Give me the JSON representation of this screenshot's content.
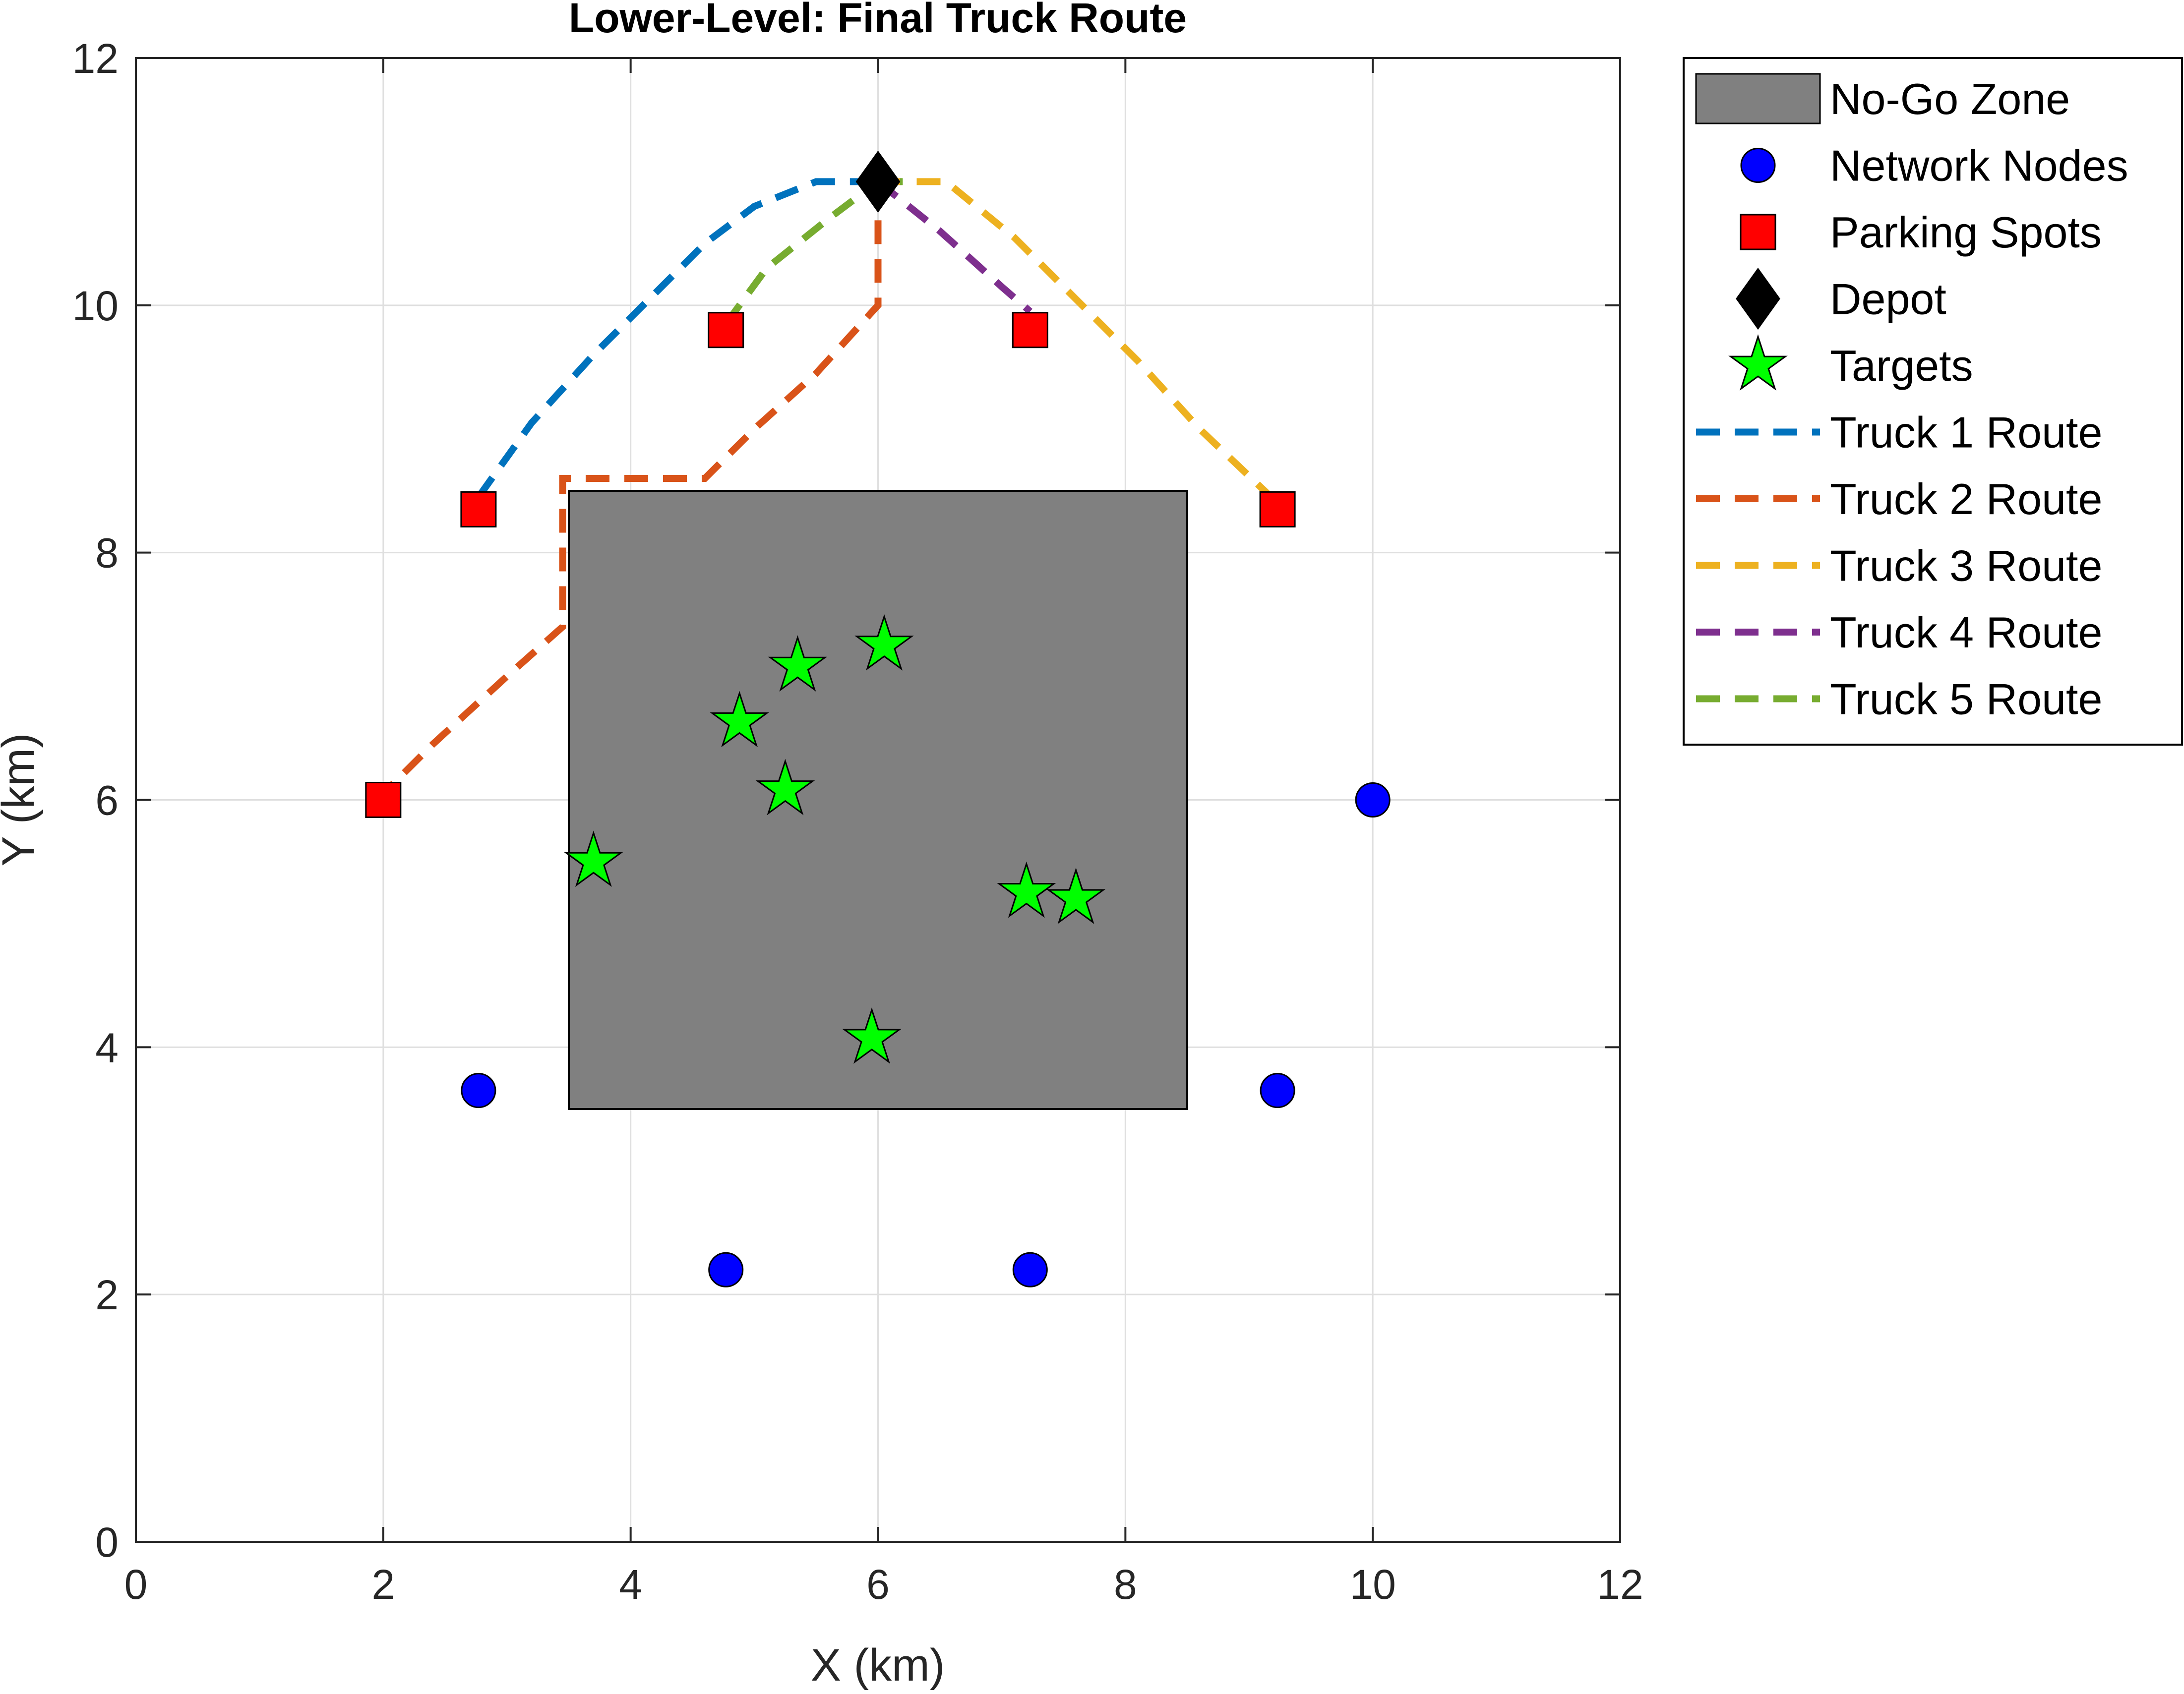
{
  "chart_data": {
    "type": "scatter",
    "title": "Lower-Level: Final Truck Route",
    "xlabel": "X (km)",
    "ylabel": "Y (km)",
    "xlim": [
      0,
      12
    ],
    "ylim": [
      0,
      12
    ],
    "xticks": [
      "0",
      "2",
      "4",
      "6",
      "8",
      "10",
      "12"
    ],
    "yticks": [
      "0",
      "2",
      "4",
      "6",
      "8",
      "10",
      "12"
    ],
    "grid": true,
    "legend_position": "outside-top-right",
    "no_go_zone": {
      "name": "No-Go Zone",
      "x": [
        3.5,
        8.5
      ],
      "y": [
        3.5,
        8.5
      ],
      "color": "#808080"
    },
    "network_nodes": {
      "name": "Network Nodes",
      "color": "#0000ff",
      "points": [
        [
          10,
          6
        ],
        [
          2.77,
          3.65
        ],
        [
          9.23,
          3.65
        ],
        [
          4.77,
          2.2
        ],
        [
          7.23,
          2.2
        ]
      ]
    },
    "parking_spots": {
      "name": "Parking Spots",
      "color": "#ff0000",
      "points": [
        [
          2.77,
          8.35
        ],
        [
          4.77,
          9.8
        ],
        [
          7.23,
          9.8
        ],
        [
          9.23,
          8.35
        ],
        [
          2,
          6
        ]
      ]
    },
    "depot": {
      "name": "Depot",
      "color": "#000000",
      "point": [
        6,
        11
      ]
    },
    "targets": {
      "name": "Targets",
      "color": "#00ff00",
      "points": [
        [
          6.05,
          7.25
        ],
        [
          5.35,
          7.08
        ],
        [
          4.88,
          6.63
        ],
        [
          5.25,
          6.08
        ],
        [
          3.7,
          5.5
        ],
        [
          7.2,
          5.25
        ],
        [
          7.6,
          5.2
        ],
        [
          5.95,
          4.07
        ]
      ]
    },
    "series": [
      {
        "name": "Truck 1 Route",
        "color": "#0072bd",
        "points": [
          [
            2.77,
            8.45
          ],
          [
            3.2,
            9.05
          ],
          [
            3.7,
            9.6
          ],
          [
            4.2,
            10.1
          ],
          [
            4.6,
            10.5
          ],
          [
            5.0,
            10.8
          ],
          [
            5.5,
            11.0
          ],
          [
            6,
            11.0
          ]
        ]
      },
      {
        "name": "Truck 2 Route",
        "color": "#d95319",
        "points": [
          [
            6,
            11.0
          ],
          [
            6,
            10.0
          ],
          [
            5.5,
            9.45
          ],
          [
            5.0,
            9.0
          ],
          [
            4.6,
            8.6
          ],
          [
            3.45,
            8.6
          ],
          [
            3.45,
            7.4
          ],
          [
            3.0,
            7.0
          ],
          [
            2.4,
            6.45
          ],
          [
            2,
            6.05
          ]
        ]
      },
      {
        "name": "Truck 3 Route",
        "color": "#edb120",
        "points": [
          [
            6,
            11.0
          ],
          [
            6.55,
            11.0
          ],
          [
            7.1,
            10.55
          ],
          [
            7.6,
            10.05
          ],
          [
            8.1,
            9.55
          ],
          [
            8.6,
            9.0
          ],
          [
            9.23,
            8.4
          ]
        ]
      },
      {
        "name": "Truck 4 Route",
        "color": "#7e2f8e",
        "points": [
          [
            6,
            11.0
          ],
          [
            6.5,
            10.6
          ],
          [
            7.0,
            10.15
          ],
          [
            7.23,
            9.95
          ]
        ]
      },
      {
        "name": "Truck 5 Route",
        "color": "#77ac30",
        "points": [
          [
            4.77,
            9.85
          ],
          [
            5.1,
            10.3
          ],
          [
            5.6,
            10.7
          ],
          [
            6,
            11.0
          ],
          [
            6.2,
            11.0
          ]
        ]
      }
    ]
  }
}
